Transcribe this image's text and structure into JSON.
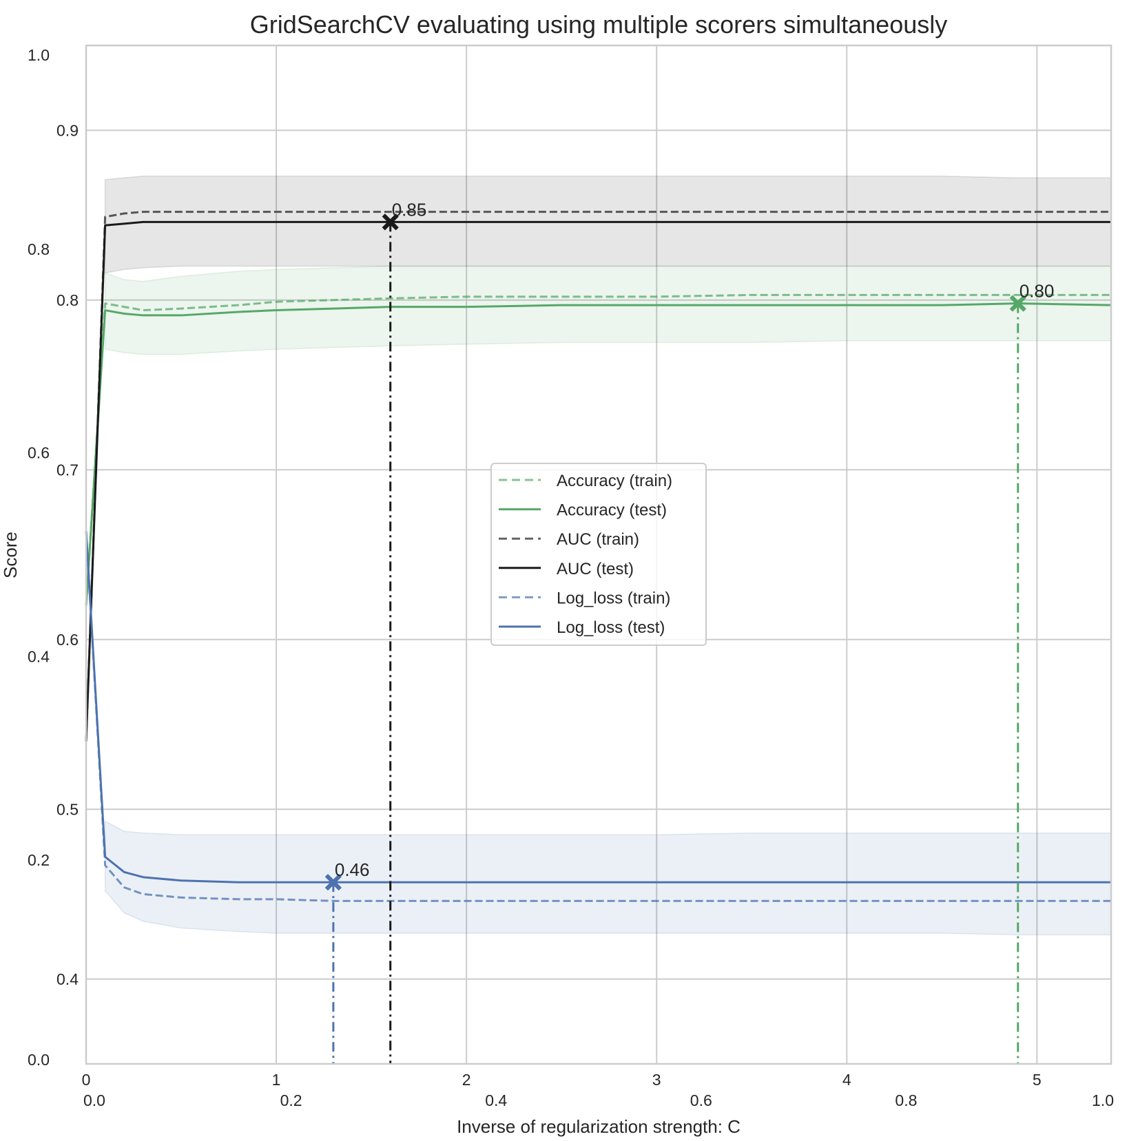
{
  "chart_data": {
    "type": "line",
    "title": "GridSearchCV evaluating using multiple scorers simultaneously",
    "xlabel": "Inverse of regularization strength: C",
    "ylabel": "Score",
    "xlim": [
      0,
      5.39
    ],
    "ylim": [
      0.35,
      0.95
    ],
    "grid": true,
    "legend_position": "center",
    "x_ticks": [
      0,
      1,
      2,
      3,
      4,
      5
    ],
    "x_tick_labels": [
      "0",
      "1",
      "2",
      "3",
      "4",
      "5"
    ],
    "y_ticks": [
      0.4,
      0.5,
      0.6,
      0.7,
      0.8,
      0.9
    ],
    "y_tick_labels": [
      "0.4",
      "0.5",
      "0.6",
      "0.7",
      "0.8",
      "0.9"
    ],
    "overlay_axes": {
      "xlim": [
        0,
        1
      ],
      "ylim": [
        0,
        1
      ],
      "x_ticks": [
        0.0,
        0.2,
        0.4,
        0.6,
        0.8,
        1.0
      ],
      "x_tick_labels": [
        "0.0",
        "0.2",
        "0.4",
        "0.6",
        "0.8",
        "1.0"
      ],
      "y_ticks": [
        0.0,
        0.2,
        0.4,
        0.6,
        0.8,
        1.0
      ],
      "y_tick_labels": [
        "0.0",
        "0.2",
        "0.4",
        "0.6",
        "0.8",
        "1.0"
      ]
    },
    "x": [
      0.0001,
      0.1,
      0.2,
      0.3,
      0.5,
      0.8,
      1.0,
      1.3,
      1.6,
      2.0,
      2.5,
      3.0,
      3.5,
      4.0,
      4.5,
      4.9,
      5.39
    ],
    "series": [
      {
        "name": "Accuracy (train)",
        "scorer": "Accuracy",
        "sample": "train",
        "color": "#55a868",
        "style": "dashed",
        "values": [
          0.62,
          0.798,
          0.796,
          0.794,
          0.795,
          0.797,
          0.799,
          0.8,
          0.801,
          0.802,
          0.802,
          0.802,
          0.803,
          0.803,
          0.803,
          0.803,
          0.803
        ]
      },
      {
        "name": "Accuracy (test)",
        "scorer": "Accuracy",
        "sample": "test",
        "color": "#55a868",
        "style": "solid",
        "values": [
          0.62,
          0.794,
          0.792,
          0.791,
          0.791,
          0.793,
          0.794,
          0.795,
          0.796,
          0.796,
          0.797,
          0.797,
          0.797,
          0.797,
          0.797,
          0.798,
          0.797
        ],
        "band_upper": [
          0.62,
          0.816,
          0.812,
          0.811,
          0.814,
          0.817,
          0.818,
          0.819,
          0.82,
          0.82,
          0.82,
          0.82,
          0.82,
          0.82,
          0.82,
          0.82,
          0.82
        ],
        "band_lower": [
          0.62,
          0.771,
          0.769,
          0.768,
          0.768,
          0.77,
          0.771,
          0.772,
          0.773,
          0.774,
          0.775,
          0.775,
          0.775,
          0.776,
          0.776,
          0.776,
          0.776
        ]
      },
      {
        "name": "AUC (train)",
        "scorer": "AUC",
        "sample": "train",
        "color": "#555555",
        "style": "dashed",
        "values": [
          0.54,
          0.849,
          0.851,
          0.852,
          0.852,
          0.852,
          0.852,
          0.852,
          0.852,
          0.852,
          0.852,
          0.852,
          0.852,
          0.852,
          0.852,
          0.852,
          0.852
        ]
      },
      {
        "name": "AUC (test)",
        "scorer": "AUC",
        "sample": "test",
        "color": "#1a1a1a",
        "style": "solid",
        "values": [
          0.54,
          0.844,
          0.845,
          0.846,
          0.846,
          0.846,
          0.846,
          0.846,
          0.846,
          0.846,
          0.846,
          0.846,
          0.846,
          0.846,
          0.846,
          0.846,
          0.846
        ],
        "band_upper": [
          0.54,
          0.871,
          0.872,
          0.873,
          0.873,
          0.873,
          0.873,
          0.873,
          0.873,
          0.873,
          0.873,
          0.873,
          0.873,
          0.873,
          0.873,
          0.872,
          0.872
        ],
        "band_lower": [
          0.54,
          0.816,
          0.818,
          0.819,
          0.82,
          0.82,
          0.82,
          0.82,
          0.82,
          0.82,
          0.82,
          0.82,
          0.82,
          0.82,
          0.82,
          0.82,
          0.82
        ]
      },
      {
        "name": "Log_loss (train)",
        "scorer": "Log_loss",
        "sample": "train",
        "color": "#4c72b0",
        "style": "dashed",
        "values": [
          0.664,
          0.467,
          0.454,
          0.45,
          0.448,
          0.447,
          0.447,
          0.446,
          0.446,
          0.446,
          0.446,
          0.446,
          0.446,
          0.446,
          0.446,
          0.446,
          0.446
        ]
      },
      {
        "name": "Log_loss (test)",
        "scorer": "Log_loss",
        "sample": "test",
        "color": "#4c72b0",
        "style": "solid",
        "values": [
          0.664,
          0.472,
          0.463,
          0.46,
          0.458,
          0.457,
          0.457,
          0.457,
          0.457,
          0.457,
          0.457,
          0.457,
          0.457,
          0.457,
          0.457,
          0.457,
          0.457
        ],
        "band_upper": [
          0.664,
          0.493,
          0.487,
          0.486,
          0.485,
          0.485,
          0.485,
          0.485,
          0.485,
          0.485,
          0.485,
          0.485,
          0.486,
          0.486,
          0.486,
          0.486,
          0.486
        ],
        "band_lower": [
          0.664,
          0.452,
          0.439,
          0.434,
          0.43,
          0.428,
          0.427,
          0.427,
          0.427,
          0.427,
          0.427,
          0.427,
          0.427,
          0.427,
          0.427,
          0.426,
          0.426
        ]
      }
    ],
    "best_markers": [
      {
        "scorer": "Accuracy",
        "x": 4.9,
        "y": 0.798,
        "label": "0.80",
        "color": "#55a868"
      },
      {
        "scorer": "AUC",
        "x": 1.6,
        "y": 0.846,
        "label": "0.85",
        "color": "#1a1a1a"
      },
      {
        "scorer": "Log_loss",
        "x": 1.3,
        "y": 0.457,
        "label": "0.46",
        "color": "#4c72b0"
      }
    ],
    "legend": [
      {
        "label": "Accuracy (train)",
        "color": "#55a868",
        "style": "dashed"
      },
      {
        "label": "Accuracy (test)",
        "color": "#55a868",
        "style": "solid"
      },
      {
        "label": "AUC (train)",
        "color": "#555555",
        "style": "dashed"
      },
      {
        "label": "AUC (test)",
        "color": "#1a1a1a",
        "style": "solid"
      },
      {
        "label": "Log_loss (train)",
        "color": "#4c72b0",
        "style": "dashed"
      },
      {
        "label": "Log_loss (test)",
        "color": "#4c72b0",
        "style": "solid"
      }
    ]
  }
}
